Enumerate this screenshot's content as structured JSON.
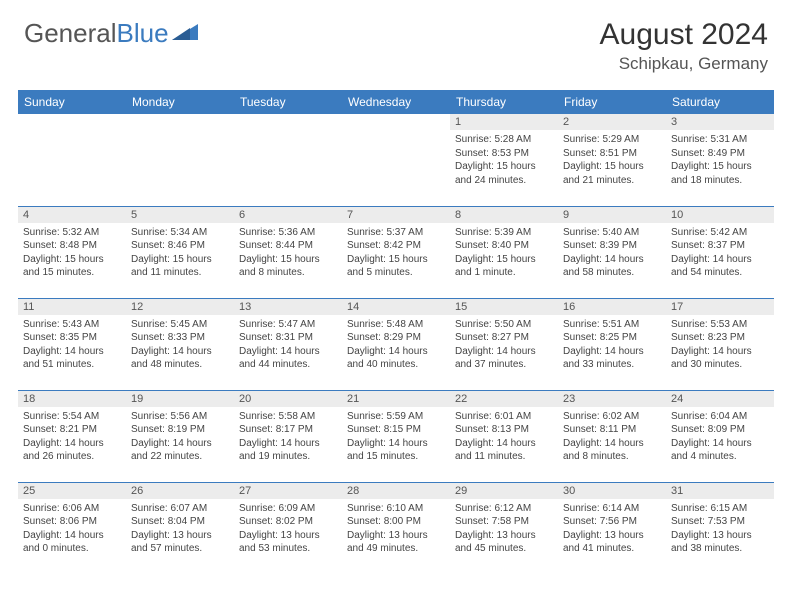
{
  "brand": {
    "part1": "General",
    "part2": "Blue",
    "logo_color": "#3b7bbf"
  },
  "title": {
    "month": "August 2024",
    "location": "Schipkau, Germany"
  },
  "colors": {
    "header_bg": "#3b7bbf",
    "header_text": "#ffffff",
    "daynum_bg": "#ececec",
    "cell_border": "#3b7bbf",
    "text": "#444444"
  },
  "dayHeaders": [
    "Sunday",
    "Monday",
    "Tuesday",
    "Wednesday",
    "Thursday",
    "Friday",
    "Saturday"
  ],
  "weeks": [
    [
      {
        "empty": true
      },
      {
        "empty": true
      },
      {
        "empty": true
      },
      {
        "empty": true
      },
      {
        "n": 1,
        "sunrise": "5:28 AM",
        "sunset": "8:53 PM",
        "daylight": "15 hours and 24 minutes."
      },
      {
        "n": 2,
        "sunrise": "5:29 AM",
        "sunset": "8:51 PM",
        "daylight": "15 hours and 21 minutes."
      },
      {
        "n": 3,
        "sunrise": "5:31 AM",
        "sunset": "8:49 PM",
        "daylight": "15 hours and 18 minutes."
      }
    ],
    [
      {
        "n": 4,
        "sunrise": "5:32 AM",
        "sunset": "8:48 PM",
        "daylight": "15 hours and 15 minutes."
      },
      {
        "n": 5,
        "sunrise": "5:34 AM",
        "sunset": "8:46 PM",
        "daylight": "15 hours and 11 minutes."
      },
      {
        "n": 6,
        "sunrise": "5:36 AM",
        "sunset": "8:44 PM",
        "daylight": "15 hours and 8 minutes."
      },
      {
        "n": 7,
        "sunrise": "5:37 AM",
        "sunset": "8:42 PM",
        "daylight": "15 hours and 5 minutes."
      },
      {
        "n": 8,
        "sunrise": "5:39 AM",
        "sunset": "8:40 PM",
        "daylight": "15 hours and 1 minute."
      },
      {
        "n": 9,
        "sunrise": "5:40 AM",
        "sunset": "8:39 PM",
        "daylight": "14 hours and 58 minutes."
      },
      {
        "n": 10,
        "sunrise": "5:42 AM",
        "sunset": "8:37 PM",
        "daylight": "14 hours and 54 minutes."
      }
    ],
    [
      {
        "n": 11,
        "sunrise": "5:43 AM",
        "sunset": "8:35 PM",
        "daylight": "14 hours and 51 minutes."
      },
      {
        "n": 12,
        "sunrise": "5:45 AM",
        "sunset": "8:33 PM",
        "daylight": "14 hours and 48 minutes."
      },
      {
        "n": 13,
        "sunrise": "5:47 AM",
        "sunset": "8:31 PM",
        "daylight": "14 hours and 44 minutes."
      },
      {
        "n": 14,
        "sunrise": "5:48 AM",
        "sunset": "8:29 PM",
        "daylight": "14 hours and 40 minutes."
      },
      {
        "n": 15,
        "sunrise": "5:50 AM",
        "sunset": "8:27 PM",
        "daylight": "14 hours and 37 minutes."
      },
      {
        "n": 16,
        "sunrise": "5:51 AM",
        "sunset": "8:25 PM",
        "daylight": "14 hours and 33 minutes."
      },
      {
        "n": 17,
        "sunrise": "5:53 AM",
        "sunset": "8:23 PM",
        "daylight": "14 hours and 30 minutes."
      }
    ],
    [
      {
        "n": 18,
        "sunrise": "5:54 AM",
        "sunset": "8:21 PM",
        "daylight": "14 hours and 26 minutes."
      },
      {
        "n": 19,
        "sunrise": "5:56 AM",
        "sunset": "8:19 PM",
        "daylight": "14 hours and 22 minutes."
      },
      {
        "n": 20,
        "sunrise": "5:58 AM",
        "sunset": "8:17 PM",
        "daylight": "14 hours and 19 minutes."
      },
      {
        "n": 21,
        "sunrise": "5:59 AM",
        "sunset": "8:15 PM",
        "daylight": "14 hours and 15 minutes."
      },
      {
        "n": 22,
        "sunrise": "6:01 AM",
        "sunset": "8:13 PM",
        "daylight": "14 hours and 11 minutes."
      },
      {
        "n": 23,
        "sunrise": "6:02 AM",
        "sunset": "8:11 PM",
        "daylight": "14 hours and 8 minutes."
      },
      {
        "n": 24,
        "sunrise": "6:04 AM",
        "sunset": "8:09 PM",
        "daylight": "14 hours and 4 minutes."
      }
    ],
    [
      {
        "n": 25,
        "sunrise": "6:06 AM",
        "sunset": "8:06 PM",
        "daylight": "14 hours and 0 minutes."
      },
      {
        "n": 26,
        "sunrise": "6:07 AM",
        "sunset": "8:04 PM",
        "daylight": "13 hours and 57 minutes."
      },
      {
        "n": 27,
        "sunrise": "6:09 AM",
        "sunset": "8:02 PM",
        "daylight": "13 hours and 53 minutes."
      },
      {
        "n": 28,
        "sunrise": "6:10 AM",
        "sunset": "8:00 PM",
        "daylight": "13 hours and 49 minutes."
      },
      {
        "n": 29,
        "sunrise": "6:12 AM",
        "sunset": "7:58 PM",
        "daylight": "13 hours and 45 minutes."
      },
      {
        "n": 30,
        "sunrise": "6:14 AM",
        "sunset": "7:56 PM",
        "daylight": "13 hours and 41 minutes."
      },
      {
        "n": 31,
        "sunrise": "6:15 AM",
        "sunset": "7:53 PM",
        "daylight": "13 hours and 38 minutes."
      }
    ]
  ],
  "labels": {
    "sunrise": "Sunrise:",
    "sunset": "Sunset:",
    "daylight": "Daylight:"
  }
}
